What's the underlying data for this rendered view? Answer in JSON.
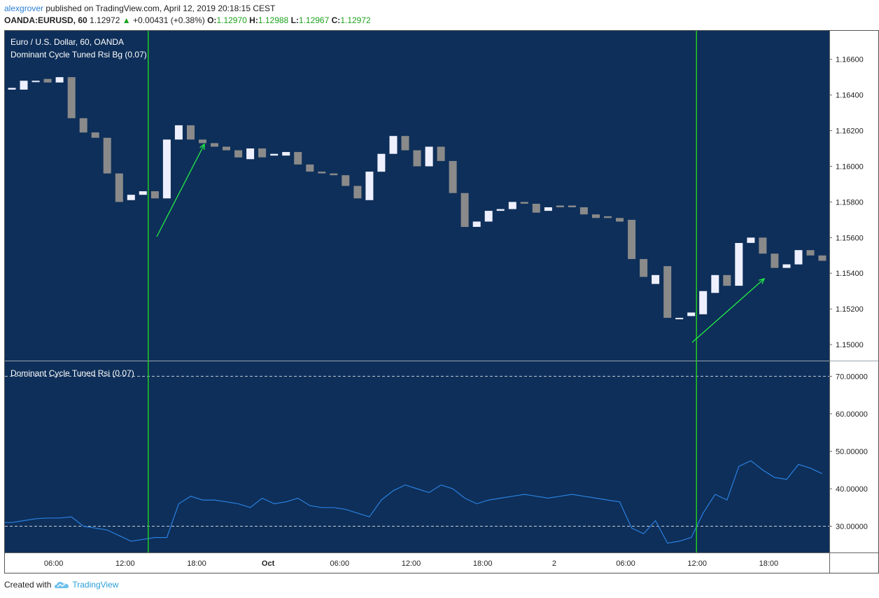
{
  "header": {
    "author": "alexgrover",
    "published_text": "published on TradingView.com, April 12, 2019 20:18:15 CEST",
    "symbol": "OANDA:EURUSD, 60",
    "last": "1.12972",
    "change": "+0.00431 (+0.38%)",
    "o_label": "O:",
    "o_value": "1.12970",
    "h_label": "H:",
    "h_value": "1.12988",
    "l_label": "L:",
    "l_value": "1.12967",
    "c_label": "C:",
    "c_value": "1.12972"
  },
  "main_pane": {
    "title": "Euro / U.S. Dollar, 60, OANDA",
    "indicator": "Dominant Cycle Tuned Rsi Bg (0.07)",
    "y_ticks": [
      "1.16600",
      "1.16400",
      "1.16200",
      "1.16000",
      "1.15800",
      "1.15600",
      "1.15400",
      "1.15200",
      "1.15000"
    ]
  },
  "rsi_pane": {
    "title": "Dominant Cycle Tuned Rsi (0.07)",
    "y_ticks": [
      "70.00000",
      "60.00000",
      "50.00000",
      "40.00000",
      "30.00000"
    ]
  },
  "x_ticks": [
    "06:00",
    "12:00",
    "18:00",
    "Oct",
    "06:00",
    "12:00",
    "18:00",
    "2",
    "06:00",
    "12:00",
    "18:00"
  ],
  "footer": {
    "created_with": "Created with",
    "brand": "TradingView"
  },
  "colors": {
    "background": "#0e2f59",
    "bull": "#eef0ff",
    "bear": "#8a8a8a",
    "signal_line": "#22cc22",
    "arrow": "#22ee44",
    "rsi_line": "#2a7fe0",
    "level_line": "#c8ccd4"
  },
  "chart_data": [
    {
      "type": "candlestick",
      "title": "Euro / U.S. Dollar, 60, OANDA",
      "ylim": [
        1.1491,
        1.1676
      ],
      "candles": [
        {
          "o": 1.1643,
          "c": 1.1644
        },
        {
          "o": 1.1643,
          "c": 1.1648
        },
        {
          "o": 1.1648,
          "c": 1.1648
        },
        {
          "o": 1.1649,
          "c": 1.1647
        },
        {
          "o": 1.1647,
          "c": 1.165
        },
        {
          "o": 1.165,
          "c": 1.1627
        },
        {
          "o": 1.1627,
          "c": 1.1619
        },
        {
          "o": 1.1619,
          "c": 1.1616
        },
        {
          "o": 1.1616,
          "c": 1.1596
        },
        {
          "o": 1.1596,
          "c": 1.158
        },
        {
          "o": 1.1581,
          "c": 1.1584
        },
        {
          "o": 1.1584,
          "c": 1.1586
        },
        {
          "o": 1.1586,
          "c": 1.1582
        },
        {
          "o": 1.1582,
          "c": 1.1615
        },
        {
          "o": 1.1615,
          "c": 1.1623
        },
        {
          "o": 1.1623,
          "c": 1.1615
        },
        {
          "o": 1.1615,
          "c": 1.1613
        },
        {
          "o": 1.1613,
          "c": 1.1611
        },
        {
          "o": 1.1611,
          "c": 1.1609
        },
        {
          "o": 1.1609,
          "c": 1.1605
        },
        {
          "o": 1.1604,
          "c": 1.161
        },
        {
          "o": 1.161,
          "c": 1.1605
        },
        {
          "o": 1.1606,
          "c": 1.1607
        },
        {
          "o": 1.1606,
          "c": 1.1608
        },
        {
          "o": 1.1608,
          "c": 1.1601
        },
        {
          "o": 1.1601,
          "c": 1.1597
        },
        {
          "o": 1.1597,
          "c": 1.1596
        },
        {
          "o": 1.1596,
          "c": 1.1595
        },
        {
          "o": 1.1595,
          "c": 1.1589
        },
        {
          "o": 1.1589,
          "c": 1.1582
        },
        {
          "o": 1.1581,
          "c": 1.1597
        },
        {
          "o": 1.1597,
          "c": 1.1607
        },
        {
          "o": 1.1607,
          "c": 1.1617
        },
        {
          "o": 1.1617,
          "c": 1.1609
        },
        {
          "o": 1.1609,
          "c": 1.16
        },
        {
          "o": 1.16,
          "c": 1.1611
        },
        {
          "o": 1.1611,
          "c": 1.1603
        },
        {
          "o": 1.1603,
          "c": 1.1585
        },
        {
          "o": 1.1585,
          "c": 1.1566
        },
        {
          "o": 1.1566,
          "c": 1.1569
        },
        {
          "o": 1.1569,
          "c": 1.1575
        },
        {
          "o": 1.1575,
          "c": 1.1576
        },
        {
          "o": 1.1576,
          "c": 1.158
        },
        {
          "o": 1.158,
          "c": 1.1579
        },
        {
          "o": 1.1579,
          "c": 1.1574
        },
        {
          "o": 1.1575,
          "c": 1.1577
        },
        {
          "o": 1.1578,
          "c": 1.1577
        },
        {
          "o": 1.1578,
          "c": 1.1577
        },
        {
          "o": 1.1577,
          "c": 1.1573
        },
        {
          "o": 1.1573,
          "c": 1.1571
        },
        {
          "o": 1.1572,
          "c": 1.1571
        },
        {
          "o": 1.1571,
          "c": 1.1569
        },
        {
          "o": 1.157,
          "c": 1.1548
        },
        {
          "o": 1.1548,
          "c": 1.1538
        },
        {
          "o": 1.1534,
          "c": 1.1539
        },
        {
          "o": 1.1544,
          "c": 1.1515
        },
        {
          "o": 1.1515,
          "c": 1.1515
        },
        {
          "o": 1.1516,
          "c": 1.1518
        },
        {
          "o": 1.1517,
          "c": 1.153
        },
        {
          "o": 1.1529,
          "c": 1.1539
        },
        {
          "o": 1.1539,
          "c": 1.1533
        },
        {
          "o": 1.1533,
          "c": 1.1557
        },
        {
          "o": 1.1557,
          "c": 1.156
        },
        {
          "o": 1.156,
          "c": 1.1551
        },
        {
          "o": 1.1551,
          "c": 1.1543
        },
        {
          "o": 1.1543,
          "c": 1.1545
        },
        {
          "o": 1.1545,
          "c": 1.1553
        },
        {
          "o": 1.1553,
          "c": 1.155
        },
        {
          "o": 1.155,
          "c": 1.1547
        }
      ],
      "signal_bars": [
        11,
        57
      ]
    },
    {
      "type": "line",
      "title": "Dominant Cycle Tuned Rsi (0.07)",
      "ylim": [
        23,
        74
      ],
      "levels": [
        70,
        30
      ],
      "values": [
        31,
        31.5,
        32,
        32.2,
        32.2,
        32.5,
        30,
        29.5,
        29,
        27.5,
        26,
        26.5,
        27,
        27,
        36,
        38,
        37,
        37,
        36.5,
        36,
        35,
        37.5,
        36,
        36.5,
        37.5,
        35.5,
        35,
        35,
        34.5,
        33.5,
        32.5,
        37,
        39.5,
        41,
        40,
        39,
        41,
        40,
        37.5,
        36,
        37,
        37.5,
        38,
        38.5,
        38,
        37.5,
        38,
        38.5,
        38,
        37.5,
        37,
        36.5,
        29.5,
        28,
        31.5,
        25.5,
        26,
        27,
        33.5,
        38.5,
        37,
        46,
        47.5,
        45,
        43,
        42.5,
        46.5,
        45.5,
        44
      ]
    }
  ]
}
